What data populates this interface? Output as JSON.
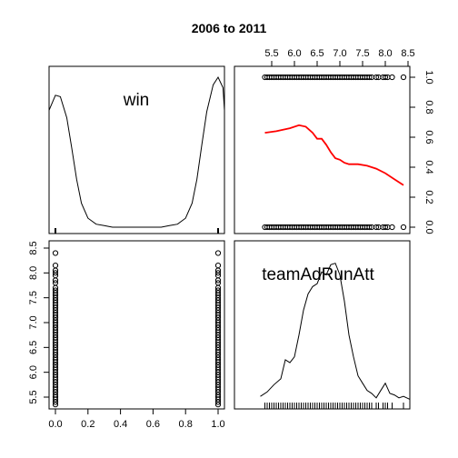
{
  "chart_data": {
    "type": "scatter",
    "title": "2006 to 2011",
    "variables": [
      "win",
      "teamAdRunAtt"
    ],
    "win_range": [
      0,
      1
    ],
    "teamAdRunAtt_range": [
      5.3,
      8.5
    ],
    "win_ticks": [
      "0.0",
      "0.2",
      "0.4",
      "0.6",
      "0.8",
      "1.0"
    ],
    "teamAdRunAtt_ticks": [
      "5.5",
      "6.0",
      "6.5",
      "7.0",
      "7.5",
      "8.0",
      "8.5"
    ],
    "lowess_curve": {
      "color": "#ff0000",
      "x": [
        5.35,
        5.6,
        5.9,
        6.1,
        6.25,
        6.4,
        6.5,
        6.6,
        6.7,
        6.8,
        6.9,
        7.0,
        7.1,
        7.2,
        7.4,
        7.6,
        7.8,
        8.0,
        8.2,
        8.4
      ],
      "y": [
        0.63,
        0.64,
        0.66,
        0.68,
        0.67,
        0.63,
        0.59,
        0.59,
        0.55,
        0.5,
        0.46,
        0.45,
        0.43,
        0.42,
        0.42,
        0.41,
        0.39,
        0.36,
        0.32,
        0.28
      ]
    },
    "win_density": {
      "x": [
        -0.05,
        0.0,
        0.03,
        0.07,
        0.1,
        0.13,
        0.16,
        0.2,
        0.25,
        0.3,
        0.35,
        0.5,
        0.65,
        0.7,
        0.75,
        0.8,
        0.84,
        0.87,
        0.9,
        0.93,
        0.97,
        1.0,
        1.03,
        1.05
      ],
      "y": [
        0.78,
        0.88,
        0.87,
        0.73,
        0.53,
        0.32,
        0.16,
        0.06,
        0.02,
        0.01,
        0.0,
        0.0,
        0.0,
        0.01,
        0.02,
        0.06,
        0.16,
        0.32,
        0.55,
        0.77,
        0.95,
        1.0,
        0.93,
        0.78
      ]
    },
    "teamAdRunAtt_density": {
      "x": [
        5.25,
        5.4,
        5.55,
        5.7,
        5.8,
        5.9,
        6.0,
        6.1,
        6.2,
        6.3,
        6.4,
        6.5,
        6.6,
        6.7,
        6.8,
        6.9,
        7.0,
        7.1,
        7.2,
        7.3,
        7.4,
        7.5,
        7.6,
        7.7,
        7.8,
        7.9,
        8.0,
        8.1,
        8.2,
        8.3,
        8.4,
        8.55
      ],
      "y": [
        0.03,
        0.06,
        0.11,
        0.15,
        0.28,
        0.26,
        0.3,
        0.45,
        0.62,
        0.73,
        0.78,
        0.8,
        0.88,
        0.86,
        0.93,
        0.94,
        0.86,
        0.68,
        0.45,
        0.3,
        0.17,
        0.12,
        0.07,
        0.05,
        0.02,
        0.07,
        0.12,
        0.05,
        0.04,
        0.02,
        0.03,
        0.01
      ]
    },
    "teamAdRunAtt_values": [
      5.35,
      5.4,
      5.45,
      5.5,
      5.55,
      5.6,
      5.65,
      5.7,
      5.75,
      5.8,
      5.85,
      5.9,
      5.95,
      6.0,
      6.05,
      6.1,
      6.15,
      6.2,
      6.25,
      6.3,
      6.35,
      6.4,
      6.45,
      6.5,
      6.55,
      6.6,
      6.65,
      6.7,
      6.75,
      6.8,
      6.85,
      6.9,
      6.95,
      7.0,
      7.05,
      7.1,
      7.15,
      7.2,
      7.25,
      7.3,
      7.35,
      7.4,
      7.45,
      7.5,
      7.55,
      7.6,
      7.65,
      7.7,
      7.8,
      7.85,
      7.95,
      8.0,
      8.05,
      8.15,
      8.4
    ],
    "grid": false,
    "legend": "none"
  }
}
